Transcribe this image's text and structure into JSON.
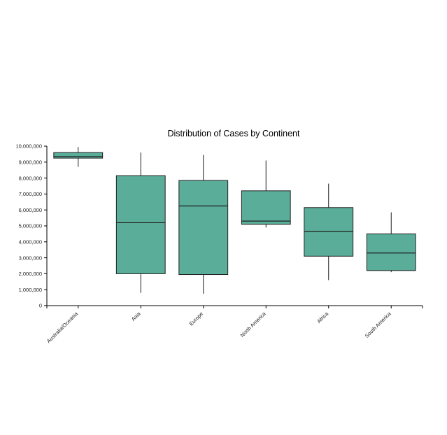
{
  "chart_data": {
    "type": "boxplot",
    "title": "Distribution of Cases by Continent",
    "xlabel": "",
    "ylabel": "",
    "ylim": [
      0,
      10000000
    ],
    "yticks": [
      0,
      1000000,
      2000000,
      3000000,
      4000000,
      5000000,
      6000000,
      7000000,
      8000000,
      9000000,
      10000000
    ],
    "ytick_labels": [
      "0",
      "1,000,000",
      "2,000,000",
      "3,000,000",
      "4,000,000",
      "5,000,000",
      "6,000,000",
      "7,000,000",
      "8,000,000",
      "9,000,000",
      "10,000,000"
    ],
    "categories": [
      "Australia/Oceania",
      "Asia",
      "Europe",
      "North America",
      "Africa",
      "South America"
    ],
    "boxes": [
      {
        "category": "Australia/Oceania",
        "min": 8700000,
        "q1": 9250000,
        "median": 9350000,
        "q3": 9600000,
        "max": 9950000
      },
      {
        "category": "Asia",
        "min": 800000,
        "q1": 2000000,
        "median": 5200000,
        "q3": 8150000,
        "max": 9600000
      },
      {
        "category": "Europe",
        "min": 750000,
        "q1": 1950000,
        "median": 6250000,
        "q3": 7850000,
        "max": 9450000
      },
      {
        "category": "North America",
        "min": 4900000,
        "q1": 5100000,
        "median": 5300000,
        "q3": 7200000,
        "max": 9100000
      },
      {
        "category": "Africa",
        "min": 1600000,
        "q1": 3100000,
        "median": 4650000,
        "q3": 6150000,
        "max": 7650000
      },
      {
        "category": "South America",
        "min": 2100000,
        "q1": 2200000,
        "median": 3300000,
        "q3": 4500000,
        "max": 5850000
      }
    ],
    "colors": {
      "box_fill": "#5aae99",
      "stroke": "#1f1f1f",
      "axis": "#000000"
    },
    "grid": false,
    "legend": "none"
  }
}
